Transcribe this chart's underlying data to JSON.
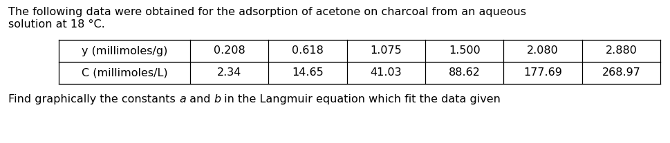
{
  "title_line1": "The following data were obtained for the adsorption of acetone on charcoal from an aqueous",
  "title_line2": "solution at 18 °C.",
  "row1_label": "y (millimoles/g)",
  "row2_label": "C (millimoles/L)",
  "row1_values": [
    "0.208",
    "0.618",
    "1.075",
    "1.500",
    "2.080",
    "2.880"
  ],
  "row2_values": [
    "2.34",
    "14.65",
    "41.03",
    "88.62",
    "177.69",
    "268.97"
  ],
  "footer_normal1": "Find graphically the constants ",
  "footer_italic_a": "a",
  "footer_normal2": " and ",
  "footer_italic_b": "b",
  "footer_normal3": " in the Langmuir equation which fit the data given",
  "bg_color": "#ffffff",
  "text_color": "#000000",
  "font_size": 11.5,
  "table_font_size": 11.5,
  "fig_width": 9.69,
  "fig_height": 2.08,
  "dpi": 100
}
